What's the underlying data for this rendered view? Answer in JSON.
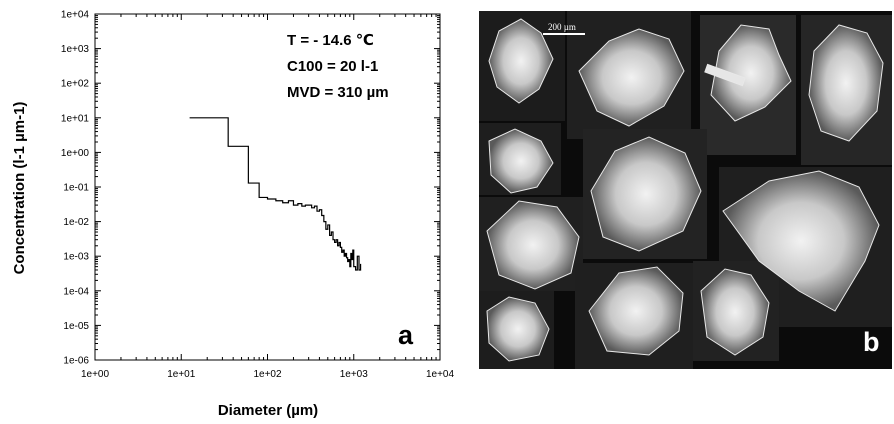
{
  "chart_data": {
    "type": "line",
    "x_scale": "log",
    "y_scale": "log",
    "xlabel": "Diameter (µm)",
    "ylabel": "Concentration (l-1 µm-1)",
    "xlim": [
      1,
      10000
    ],
    "ylim": [
      1e-06,
      10000
    ],
    "x_ticks": [
      "1e+00",
      "1e+01",
      "1e+02",
      "1e+03",
      "1e+04"
    ],
    "y_ticks": [
      "1e+04",
      "1e+03",
      "1e+02",
      "1e+01",
      "1e+00",
      "1e-01",
      "1e-02",
      "1e-03",
      "1e-04",
      "1e-05",
      "1e-06"
    ],
    "annotations": [
      "T = - 14.6 ℃",
      "C100 = 20 l-1",
      "MVD = 310 µm"
    ],
    "panel_label": "a",
    "series": [
      {
        "style": "step",
        "color": "#000000",
        "x": [
          12.5,
          35,
          60,
          80,
          100,
          125,
          150,
          175,
          200,
          225,
          250,
          275,
          300,
          325,
          350,
          375,
          400,
          425,
          450,
          475,
          500,
          525,
          550,
          575,
          600,
          625,
          650,
          675,
          700,
          725,
          750,
          775,
          800,
          825,
          850,
          875,
          900,
          925,
          950,
          975,
          1000,
          1050,
          1100,
          1150,
          1200
        ],
        "y": [
          10,
          1.5,
          0.13,
          0.05,
          0.045,
          0.04,
          0.035,
          0.04,
          0.03,
          0.033,
          0.028,
          0.03,
          0.03,
          0.025,
          0.028,
          0.02,
          0.022,
          0.015,
          0.01,
          0.006,
          0.008,
          0.004,
          0.005,
          0.003,
          0.0025,
          0.003,
          0.002,
          0.0025,
          0.0018,
          0.0013,
          0.0015,
          0.001,
          0.0012,
          0.0009,
          0.0007,
          0.0008,
          0.0005,
          0.0012,
          0.0008,
          0.0015,
          0.0005,
          0.0004,
          0.001,
          0.0004,
          0.0006
        ]
      }
    ]
  },
  "photo_panel": {
    "scale_label": "200 µm",
    "panel_label": "b"
  }
}
